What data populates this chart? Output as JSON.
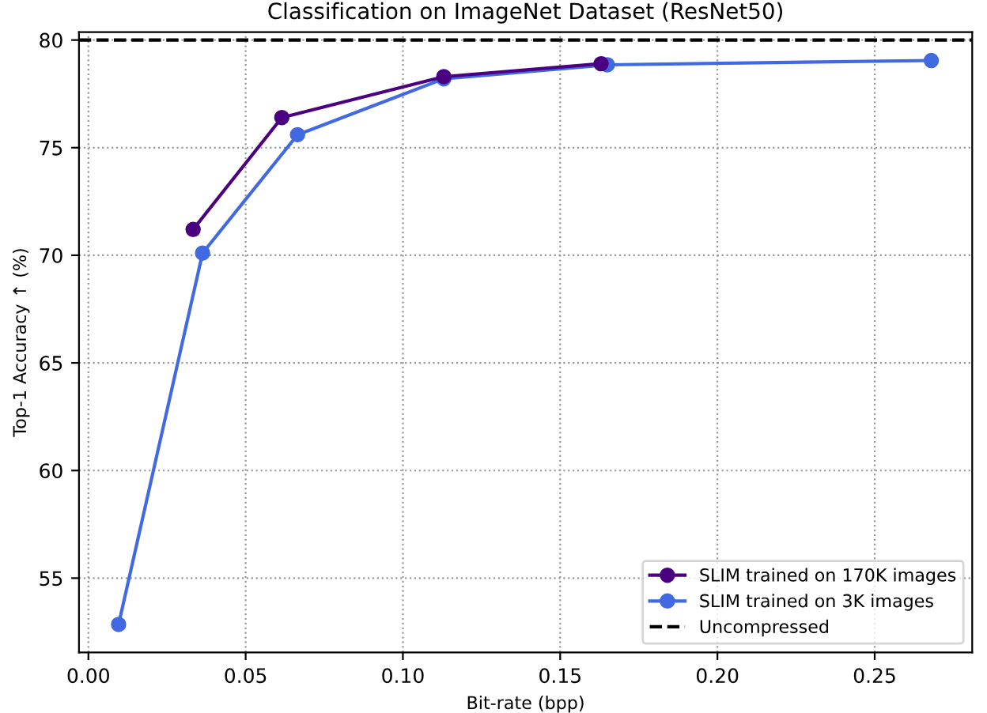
{
  "chart_data": {
    "type": "line",
    "title": "Classification on ImageNet Dataset (ResNet50)",
    "xlabel": "Bit-rate (bpp)",
    "ylabel": "Top-1 Accuracy ↑ (%)",
    "series": [
      {
        "name": "SLIM trained on 170K images",
        "color": "#4b0082",
        "x": [
          0.0333,
          0.0615,
          0.113,
          0.163
        ],
        "values": [
          71.2,
          76.4,
          78.3,
          78.9
        ]
      },
      {
        "name": "SLIM trained on 3K images",
        "color": "#4169e1",
        "x": [
          0.0096,
          0.0363,
          0.0665,
          0.113,
          0.165,
          0.268
        ],
        "values": [
          52.85,
          70.1,
          75.6,
          78.2,
          78.85,
          79.05
        ]
      }
    ],
    "ref_lines": [
      {
        "axis": "y",
        "value": 80,
        "label": "Uncompressed",
        "color": "#000000",
        "line_style": "dashed"
      }
    ],
    "xlim": [
      -0.003,
      0.281
    ],
    "ylim": [
      51.55,
      80.37
    ],
    "xticks": [
      {
        "value": 0,
        "label": "0.00"
      },
      0.05,
      {
        "value": 0.1,
        "label": "0.10"
      },
      0.15,
      {
        "value": 0.2,
        "label": "0.20"
      },
      0.25
    ],
    "yticks": [
      55,
      60,
      65,
      70,
      75,
      80
    ],
    "grid": true,
    "legend": "bottom right",
    "marker": "circle",
    "line_style": "solid"
  }
}
